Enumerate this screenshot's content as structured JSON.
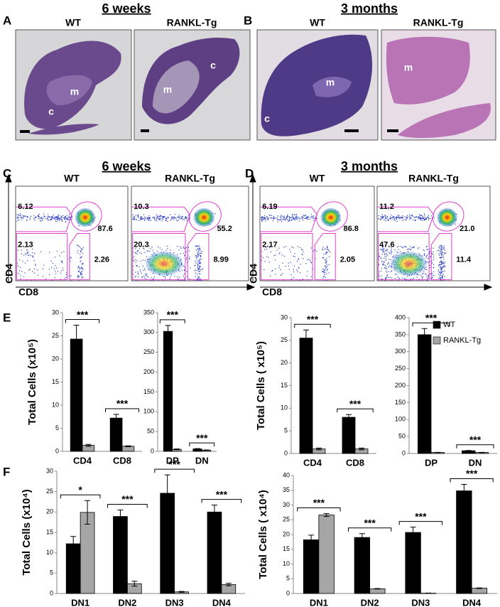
{
  "histology": [
    {
      "panel": "A",
      "title": "6 weeks",
      "images": [
        {
          "label": "WT",
          "regions": [
            "c",
            "m"
          ]
        },
        {
          "label": "RANKL-Tg",
          "regions": [
            "m",
            "c"
          ]
        }
      ]
    },
    {
      "panel": "B",
      "title": "3 months",
      "images": [
        {
          "label": "WT",
          "regions": [
            "c",
            "m"
          ]
        },
        {
          "label": "RANKL-Tg",
          "regions": [
            "m"
          ]
        }
      ]
    }
  ],
  "flow": [
    {
      "panel": "C",
      "title": "6 weeks",
      "y_axis": "CD4",
      "x_axis": "CD8",
      "plots": [
        {
          "label": "WT",
          "gates": [
            "6.12",
            "87.6",
            "2.13",
            "2.26"
          ]
        },
        {
          "label": "RANKL-Tg",
          "gates": [
            "10.3",
            "55.2",
            "20.3",
            "8.99"
          ]
        }
      ]
    },
    {
      "panel": "D",
      "title": "3 months",
      "y_axis": "CD4",
      "x_axis": "CD8",
      "plots": [
        {
          "label": "WT",
          "gates": [
            "6.19",
            "86.8",
            "2.17",
            "2.05"
          ]
        },
        {
          "label": "RANKL-Tg",
          "gates": [
            "11.2",
            "21.0",
            "47.6",
            "11.4"
          ]
        }
      ]
    }
  ],
  "bar_panels": [
    "E",
    "F"
  ],
  "chart_data": [
    {
      "type": "bar",
      "ylabel": "Total Cells (x10⁵)",
      "categories": [
        "CD4",
        "CD8"
      ],
      "ylim": [
        0,
        30
      ],
      "yticks": [
        0,
        5,
        10,
        15,
        20,
        25,
        30
      ],
      "series": [
        {
          "color": "#000000",
          "values": [
            24.3,
            7.2
          ],
          "errors": [
            3.0,
            0.8
          ]
        },
        {
          "color": "#a6a6a6",
          "values": [
            1.3,
            1.1
          ],
          "errors": [
            0.2,
            0.1
          ]
        }
      ],
      "significance": [
        "***",
        "***"
      ]
    },
    {
      "type": "bar",
      "categories": [
        "DP",
        "DN"
      ],
      "ylim": [
        0,
        350
      ],
      "yticks": [
        0,
        50,
        100,
        150,
        200,
        250,
        300,
        350
      ],
      "series": [
        {
          "color": "#000000",
          "values": [
            303,
            6
          ],
          "errors": [
            15,
            1
          ]
        },
        {
          "color": "#a6a6a6",
          "values": [
            5,
            3
          ],
          "errors": [
            1,
            0.5
          ]
        }
      ],
      "significance": [
        "***",
        "***"
      ]
    },
    {
      "type": "bar",
      "ylabel": "Total Cells ( x10⁵)",
      "categories": [
        "CD4",
        "CD8"
      ],
      "ylim": [
        0,
        30
      ],
      "yticks": [
        0,
        5,
        10,
        15,
        20,
        25,
        30
      ],
      "series": [
        {
          "color": "#000000",
          "values": [
            25.5,
            8.0
          ],
          "errors": [
            1.8,
            0.6
          ]
        },
        {
          "color": "#a6a6a6",
          "values": [
            1.0,
            1.0
          ],
          "errors": [
            0.2,
            0.2
          ]
        }
      ],
      "significance": [
        "***",
        "***"
      ]
    },
    {
      "type": "bar",
      "categories": [
        "DP",
        "DN"
      ],
      "ylim": [
        0,
        400
      ],
      "yticks": [
        0,
        50,
        100,
        150,
        200,
        250,
        300,
        350,
        400
      ],
      "legend": "upper right",
      "series": [
        {
          "name": "WT",
          "color": "#000000",
          "values": [
            350,
            8
          ],
          "errors": [
            18,
            1
          ]
        },
        {
          "name": "RANKL-Tg",
          "color": "#a6a6a6",
          "values": [
            3,
            3
          ],
          "errors": [
            0.5,
            0.5
          ]
        }
      ],
      "significance": [
        "***",
        "***"
      ]
    },
    {
      "type": "bar",
      "ylabel": "Total Cells (x10⁴)",
      "categories": [
        "DN1",
        "DN2",
        "DN3",
        "DN4"
      ],
      "ylim": [
        0,
        30
      ],
      "yticks": [
        0,
        5,
        10,
        15,
        20,
        25,
        30
      ],
      "series": [
        {
          "color": "#000000",
          "values": [
            12.2,
            18.9,
            24.6,
            20.0
          ],
          "errors": [
            1.8,
            1.6,
            4.5,
            1.7
          ]
        },
        {
          "color": "#a6a6a6",
          "values": [
            19.9,
            2.4,
            0.4,
            2.2
          ],
          "errors": [
            2.9,
            0.6,
            0.1,
            0.3
          ]
        }
      ],
      "significance": [
        "*",
        "***",
        "***",
        "***"
      ]
    },
    {
      "type": "bar",
      "ylabel": "Total Cells ( x10⁴)",
      "categories": [
        "DN1",
        "DN2",
        "DN3",
        "DN4"
      ],
      "ylim": [
        0,
        40
      ],
      "yticks": [
        0,
        5,
        10,
        15,
        20,
        25,
        30,
        35,
        40
      ],
      "series": [
        {
          "color": "#000000",
          "values": [
            18.2,
            19.0,
            20.7,
            34.8
          ],
          "errors": [
            1.6,
            1.3,
            1.8,
            2.2
          ]
        },
        {
          "color": "#a6a6a6",
          "values": [
            26.6,
            1.6,
            0.1,
            1.8
          ],
          "errors": [
            0.5,
            0.1,
            0.05,
            0.1
          ]
        }
      ],
      "significance": [
        "***",
        "***",
        "***",
        "***"
      ]
    }
  ]
}
